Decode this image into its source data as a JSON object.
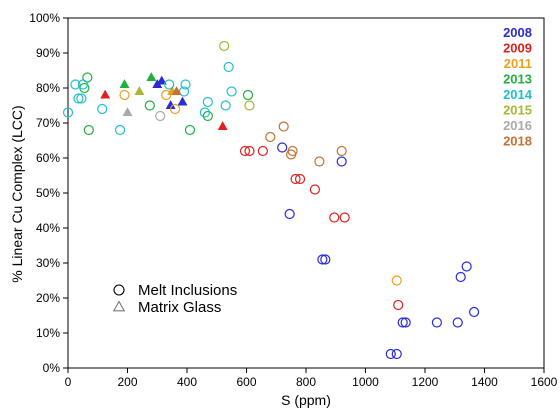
{
  "chart_data": {
    "type": "scatter",
    "xlabel": "S (ppm)",
    "ylabel": "% Linear Cu Complex (LCC)",
    "xlim": [
      0,
      1600
    ],
    "ylim": [
      0,
      100
    ],
    "x_ticks": [
      "0",
      "200",
      "400",
      "600",
      "800",
      "1000",
      "1200",
      "1400",
      "1600"
    ],
    "y_ticks": [
      "0%",
      "10%",
      "20%",
      "30%",
      "40%",
      "50%",
      "60%",
      "70%",
      "80%",
      "90%",
      "100%"
    ],
    "grid": false,
    "year_legend_position": "top-right",
    "shape_legend_position": "bottom-left",
    "shape_legend": [
      {
        "marker": "circle",
        "label": "Melt Inclusions"
      },
      {
        "marker": "triangle",
        "label": "Matrix Glass"
      }
    ],
    "series": [
      {
        "name": "2008",
        "color": "#2a2ad6",
        "melt_inclusions": [
          [
            720,
            63
          ],
          [
            745,
            44
          ],
          [
            855,
            31
          ],
          [
            865,
            31
          ],
          [
            920,
            59
          ],
          [
            1085,
            4
          ],
          [
            1105,
            4
          ],
          [
            1125,
            13
          ],
          [
            1135,
            13
          ],
          [
            1240,
            13
          ],
          [
            1310,
            13
          ],
          [
            1320,
            26
          ],
          [
            1340,
            29
          ],
          [
            1365,
            16
          ]
        ],
        "matrix_glass": [
          [
            300,
            81
          ],
          [
            315,
            82
          ],
          [
            345,
            75
          ],
          [
            385,
            76
          ]
        ]
      },
      {
        "name": "2009",
        "color": "#e02020",
        "melt_inclusions": [
          [
            595,
            62
          ],
          [
            610,
            62
          ],
          [
            655,
            62
          ],
          [
            765,
            54
          ],
          [
            780,
            54
          ],
          [
            830,
            51
          ],
          [
            895,
            43
          ],
          [
            930,
            43
          ],
          [
            1110,
            18
          ]
        ],
        "matrix_glass": [
          [
            125,
            78
          ],
          [
            520,
            69
          ]
        ]
      },
      {
        "name": "2011",
        "color": "#e8a020",
        "melt_inclusions": [
          [
            190,
            78
          ],
          [
            330,
            78
          ],
          [
            360,
            74
          ],
          [
            1105,
            25
          ]
        ],
        "matrix_glass": [
          [
            350,
            79
          ]
        ]
      },
      {
        "name": "2013",
        "color": "#20b040",
        "melt_inclusions": [
          [
            55,
            80
          ],
          [
            65,
            83
          ],
          [
            70,
            68
          ],
          [
            275,
            75
          ],
          [
            410,
            68
          ],
          [
            470,
            72
          ],
          [
            605,
            78
          ]
        ],
        "matrix_glass": [
          [
            190,
            81
          ],
          [
            280,
            83
          ]
        ]
      },
      {
        "name": "2014",
        "color": "#20c0d0",
        "melt_inclusions": [
          [
            0,
            73
          ],
          [
            25,
            81
          ],
          [
            35,
            77
          ],
          [
            45,
            77
          ],
          [
            50,
            81
          ],
          [
            115,
            74
          ],
          [
            175,
            68
          ],
          [
            340,
            81
          ],
          [
            390,
            79
          ],
          [
            395,
            81
          ],
          [
            460,
            73
          ],
          [
            470,
            76
          ],
          [
            530,
            75
          ],
          [
            540,
            86
          ],
          [
            550,
            79
          ]
        ],
        "matrix_glass": []
      },
      {
        "name": "2015",
        "color": "#a8b830",
        "melt_inclusions": [
          [
            525,
            92
          ],
          [
            610,
            75
          ]
        ],
        "matrix_glass": [
          [
            240,
            79
          ]
        ]
      },
      {
        "name": "2016",
        "color": "#aaaaaa",
        "melt_inclusions": [
          [
            310,
            72
          ]
        ],
        "matrix_glass": [
          [
            200,
            73
          ]
        ]
      },
      {
        "name": "2018",
        "color": "#c87030",
        "melt_inclusions": [
          [
            680,
            66
          ],
          [
            725,
            69
          ],
          [
            750,
            61
          ],
          [
            755,
            62
          ],
          [
            845,
            59
          ],
          [
            920,
            62
          ]
        ],
        "matrix_glass": [
          [
            365,
            79
          ]
        ]
      }
    ]
  }
}
